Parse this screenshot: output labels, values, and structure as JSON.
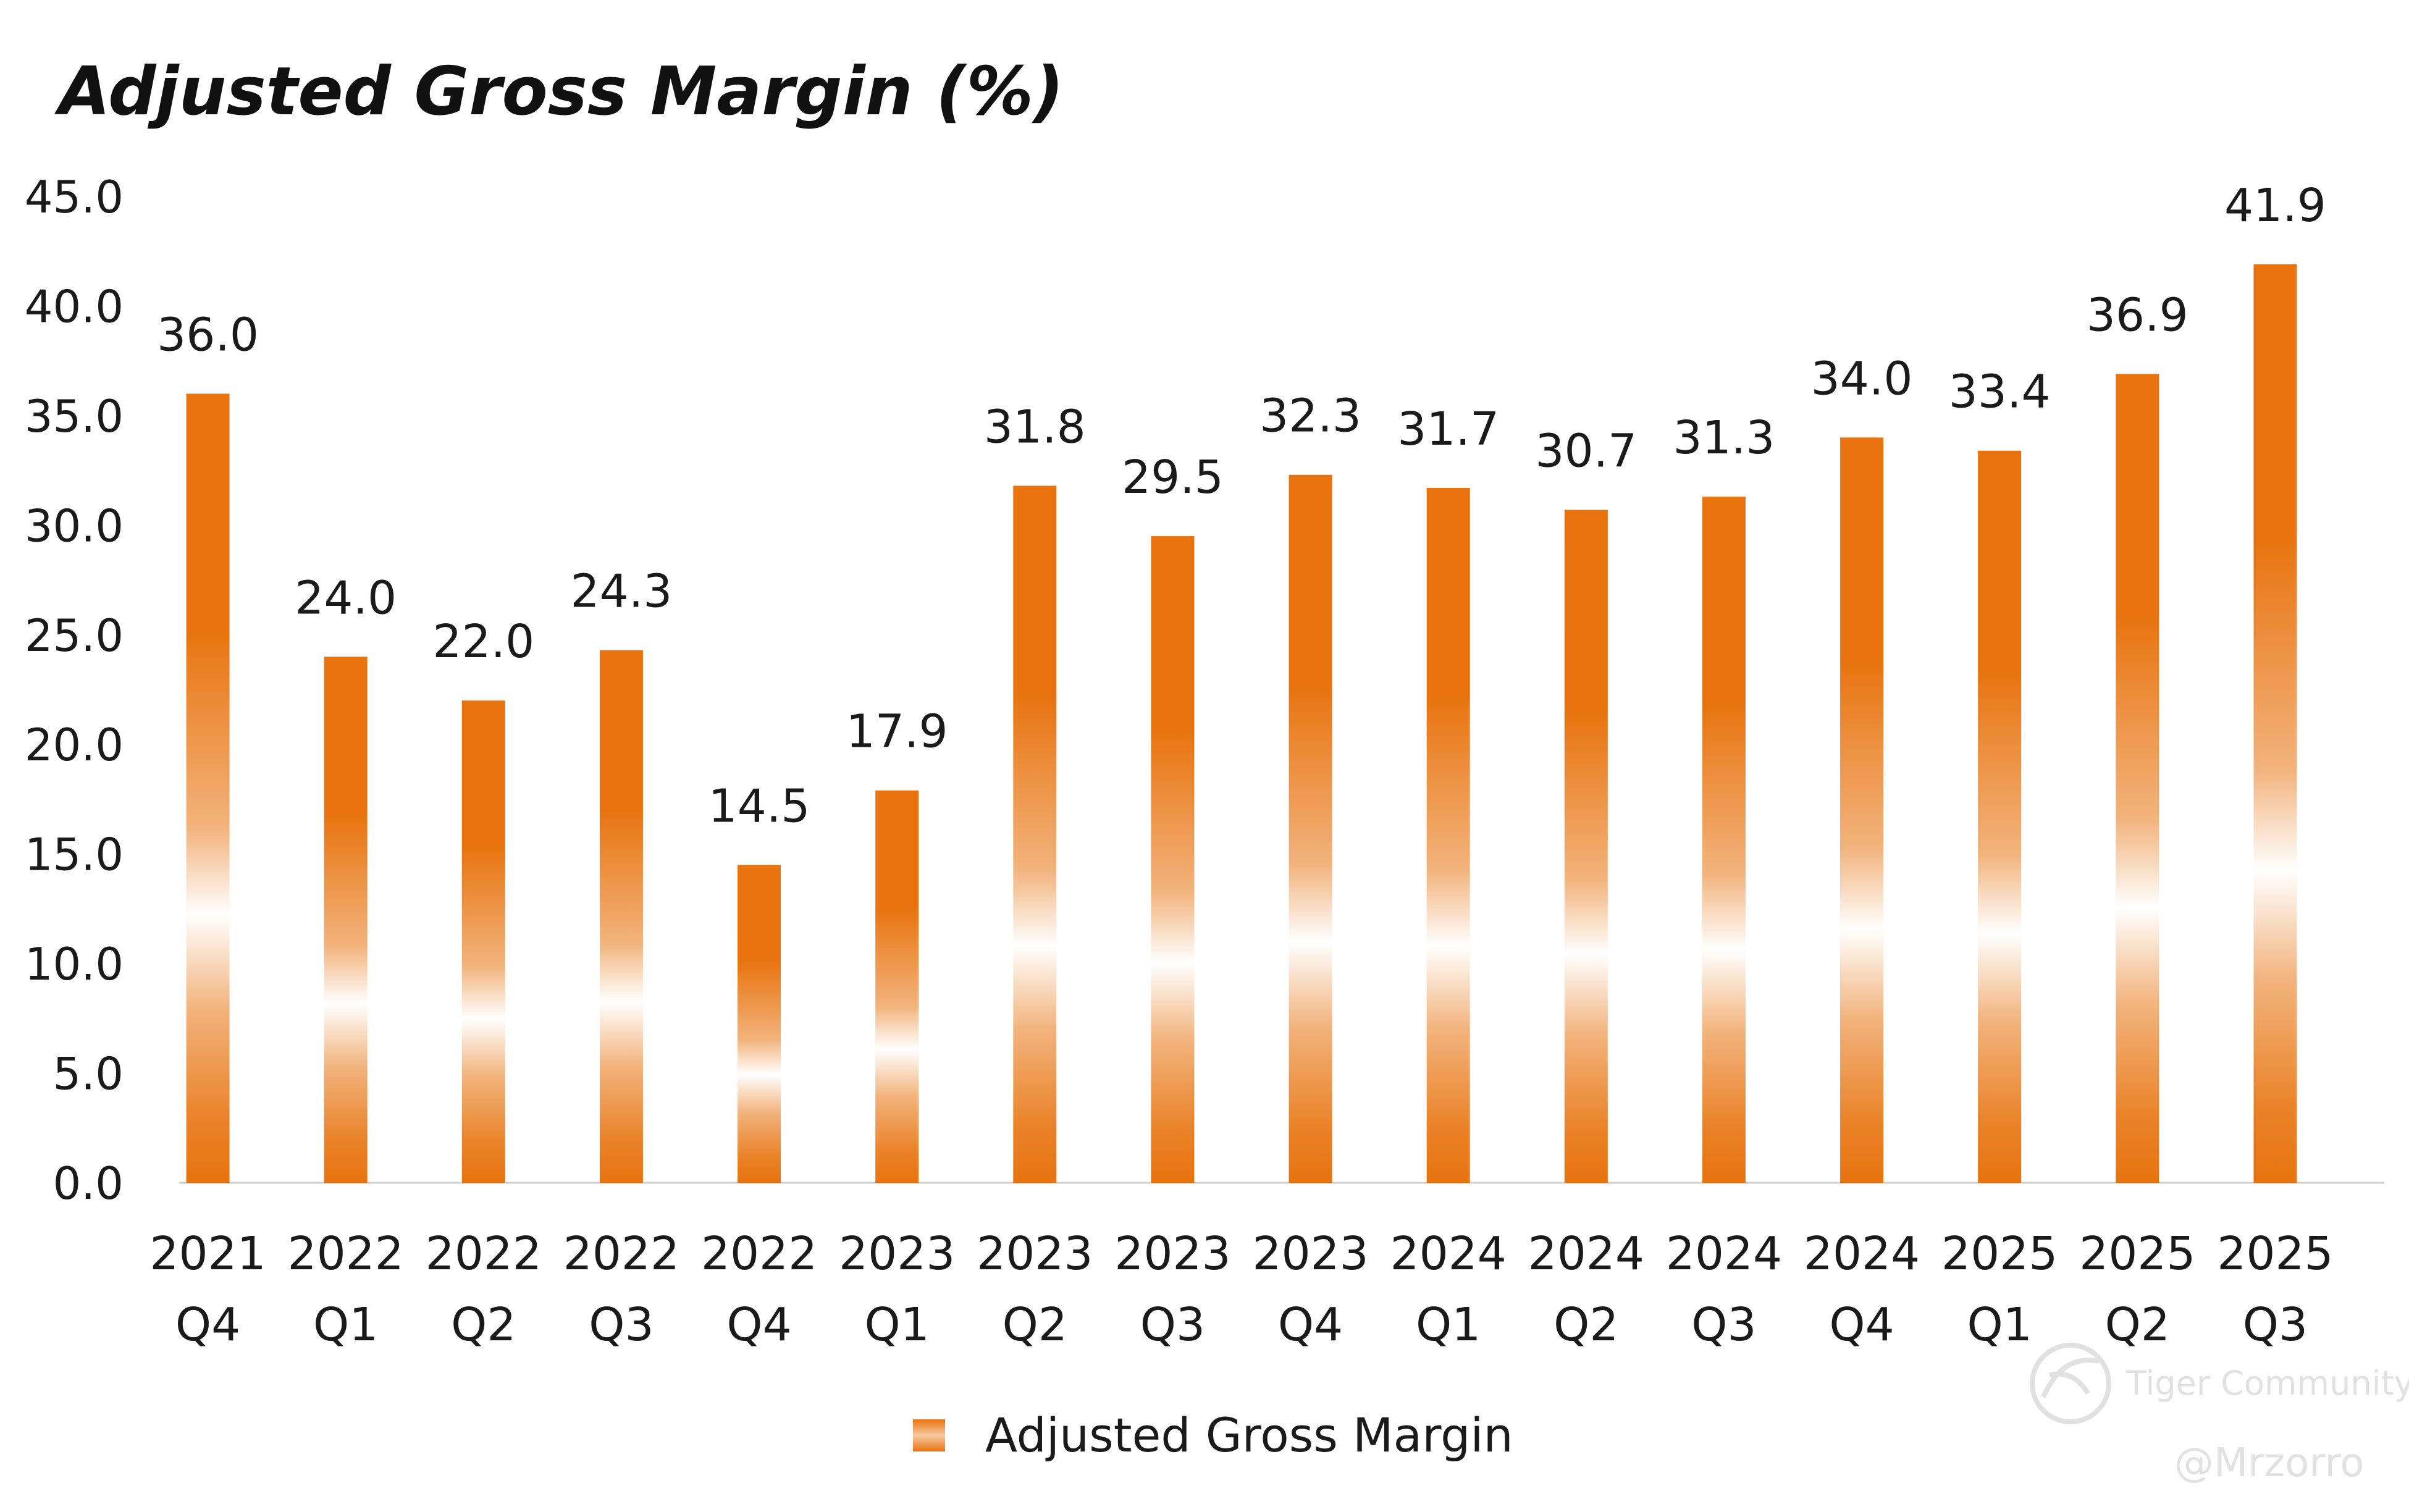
{
  "chart_data": {
    "type": "bar",
    "title": "Adjusted Gross Margin (%)",
    "xlabel": "",
    "ylabel": "",
    "ylim": [
      0,
      45
    ],
    "yticks": [
      "0.0",
      "5.0",
      "10.0",
      "15.0",
      "20.0",
      "25.0",
      "30.0",
      "35.0",
      "40.0",
      "45.0"
    ],
    "categories": [
      {
        "year": "2021",
        "quarter": "Q4"
      },
      {
        "year": "2022",
        "quarter": "Q1"
      },
      {
        "year": "2022",
        "quarter": "Q2"
      },
      {
        "year": "2022",
        "quarter": "Q3"
      },
      {
        "year": "2022",
        "quarter": "Q4"
      },
      {
        "year": "2023",
        "quarter": "Q1"
      },
      {
        "year": "2023",
        "quarter": "Q2"
      },
      {
        "year": "2023",
        "quarter": "Q3"
      },
      {
        "year": "2023",
        "quarter": "Q4"
      },
      {
        "year": "2024",
        "quarter": "Q1"
      },
      {
        "year": "2024",
        "quarter": "Q2"
      },
      {
        "year": "2024",
        "quarter": "Q3"
      },
      {
        "year": "2024",
        "quarter": "Q4"
      },
      {
        "year": "2025",
        "quarter": "Q1"
      },
      {
        "year": "2025",
        "quarter": "Q2"
      },
      {
        "year": "2025",
        "quarter": "Q3"
      }
    ],
    "series": [
      {
        "name": "Adjusted Gross Margin",
        "values": [
          36.0,
          24.0,
          22.0,
          24.3,
          14.5,
          17.9,
          31.8,
          29.5,
          32.3,
          31.7,
          30.7,
          31.3,
          34.0,
          33.4,
          36.9,
          41.9
        ],
        "labels": [
          "36.0",
          "24.0",
          "22.0",
          "24.3",
          "14.5",
          "17.9",
          "31.8",
          "29.5",
          "32.3",
          "31.7",
          "30.7",
          "31.3",
          "34.0",
          "33.4",
          "36.9",
          "41.9"
        ]
      }
    ],
    "legend": "bottom-center",
    "grid": false
  },
  "colors": {
    "bar": "#e8730f",
    "bar_fade": "#ffffff",
    "axis": "#cfcfcf",
    "text": "#1a1a1a"
  },
  "watermark": {
    "brand": "Tiger Community",
    "handle": "@Mrzorro",
    "icon": "tiger-logo-icon"
  }
}
